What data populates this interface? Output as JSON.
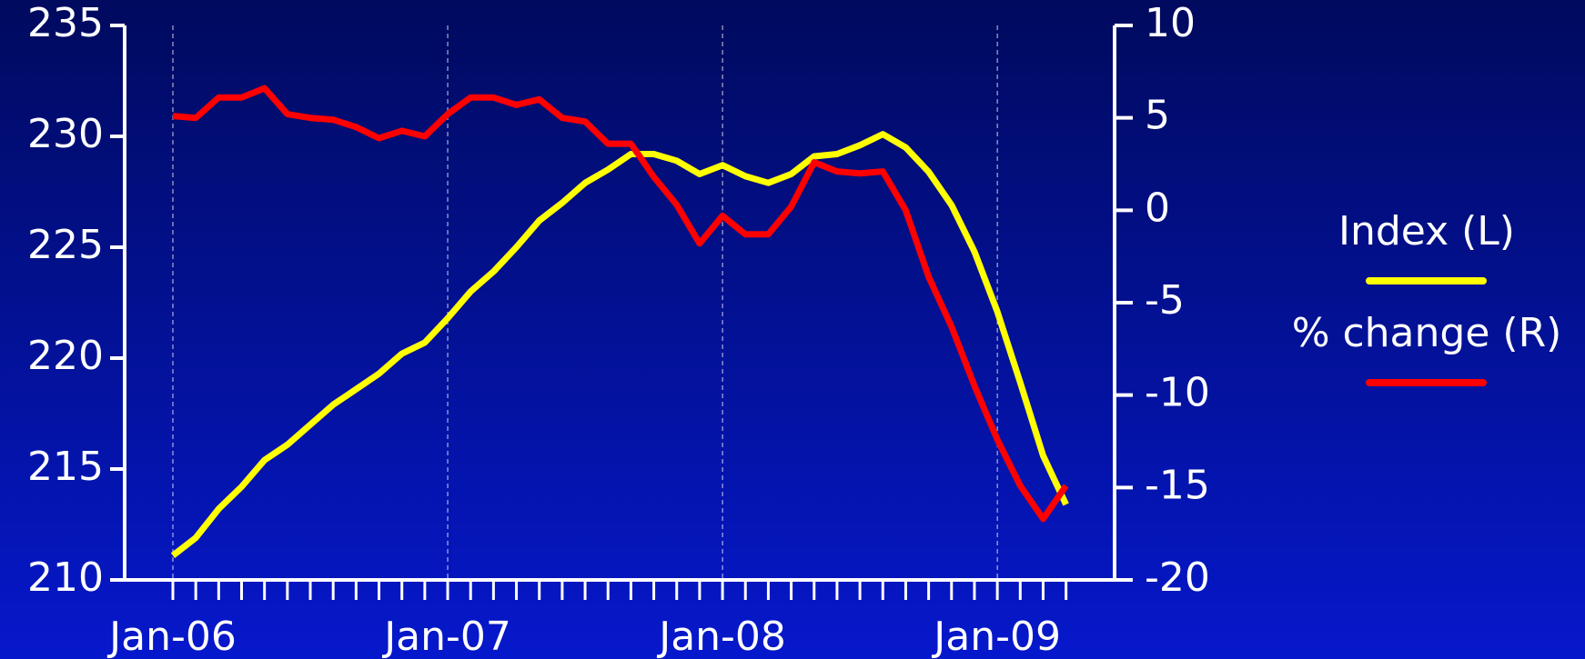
{
  "chart_data": {
    "type": "line",
    "categories": [
      "Jan-06",
      null,
      null,
      null,
      null,
      null,
      null,
      null,
      null,
      null,
      null,
      null,
      "Jan-07",
      null,
      null,
      null,
      null,
      null,
      null,
      null,
      null,
      null,
      null,
      null,
      "Jan-08",
      null,
      null,
      null,
      null,
      null,
      null,
      null,
      null,
      null,
      null,
      null,
      "Jan-09",
      null,
      null,
      null
    ],
    "series": [
      {
        "name": "Index (L)",
        "color": "#ffff00",
        "axis": "y",
        "values": [
          211.1,
          211.9,
          213.2,
          214.2,
          215.4,
          216.1,
          217.0,
          217.9,
          218.6,
          219.3,
          220.2,
          220.7,
          221.8,
          223.0,
          223.9,
          225.0,
          226.2,
          227.0,
          227.9,
          228.5,
          229.2,
          229.2,
          228.9,
          228.3,
          228.7,
          228.2,
          227.9,
          228.3,
          229.1,
          229.2,
          229.6,
          230.1,
          229.5,
          228.4,
          226.9,
          224.8,
          222.1,
          218.9,
          215.6,
          213.4
        ]
      },
      {
        "name": "% change (R)",
        "color": "#ff0000",
        "axis": "y2",
        "values": [
          5.1,
          5.0,
          6.1,
          6.1,
          6.6,
          5.2,
          5.0,
          4.9,
          4.5,
          3.9,
          4.3,
          4.0,
          5.2,
          6.1,
          6.1,
          5.7,
          6.0,
          5.0,
          4.8,
          3.6,
          3.6,
          1.8,
          0.3,
          -1.8,
          -0.3,
          -1.3,
          -1.3,
          0.2,
          2.6,
          2.1,
          2.0,
          2.1,
          0.0,
          -3.6,
          -6.3,
          -9.5,
          -12.4,
          -14.9,
          -16.7,
          -14.9
        ]
      }
    ],
    "ylim": [
      210,
      235
    ],
    "yticks": [
      210,
      215,
      220,
      225,
      230,
      235
    ],
    "y2lim": [
      -20,
      10
    ],
    "y2ticks": [
      -20,
      -15,
      -10,
      -5,
      0,
      5,
      10
    ],
    "xgrid": true,
    "legend": "right"
  }
}
